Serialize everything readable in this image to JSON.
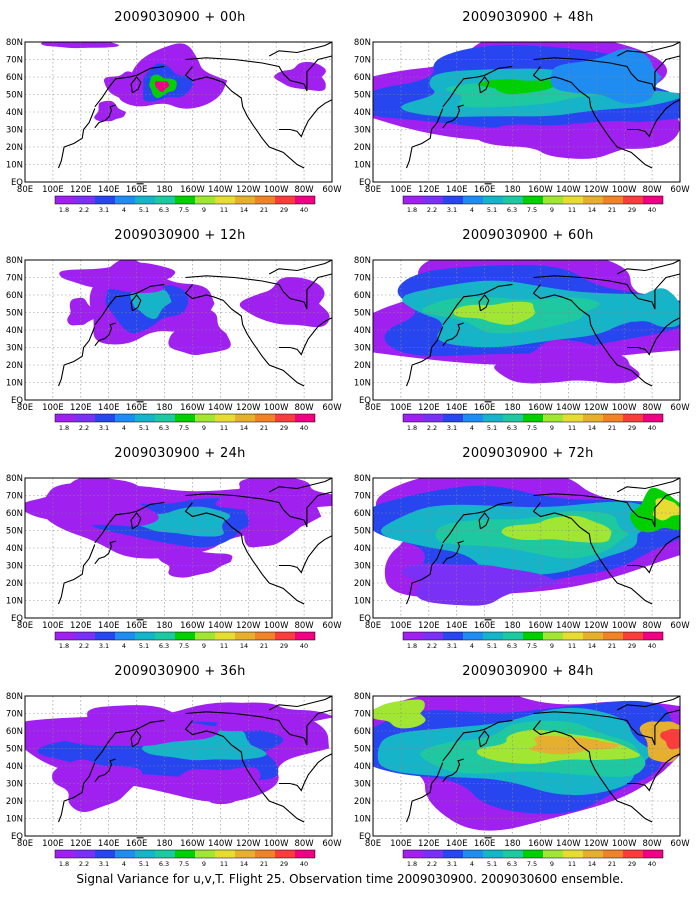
{
  "caption": "Signal Variance for u,v,T. Flight 25. Observation time 2009030900. 2009030600 ensemble.",
  "lat_labels": [
    "80N",
    "70N",
    "60N",
    "50N",
    "40N",
    "30N",
    "20N",
    "10N",
    "EQ"
  ],
  "lon_labels": [
    "80E",
    "100E",
    "120E",
    "140E",
    "160E",
    "180",
    "160W",
    "140W",
    "120W",
    "100W",
    "80W",
    "60W"
  ],
  "colorbar": {
    "labels": [
      "1.8",
      "2.2",
      "3.1",
      "4",
      "5.1",
      "6.3",
      "7.5",
      "9",
      "11",
      "14",
      "21",
      "29",
      "40"
    ],
    "colors": [
      "#a020f0",
      "#7a30f5",
      "#2846f0",
      "#1e8cf0",
      "#16b4c8",
      "#1ec8a0",
      "#00d000",
      "#a0e632",
      "#e6dc32",
      "#e6af2d",
      "#f08228",
      "#fa3c3c",
      "#f00082"
    ]
  },
  "panels": [
    {
      "title": "2009030900 + 00h",
      "level": 0
    },
    {
      "title": "2009030900 + 12h",
      "level": 1
    },
    {
      "title": "2009030900 + 24h",
      "level": 2
    },
    {
      "title": "2009030900 + 36h",
      "level": 3
    },
    {
      "title": "2009030900 + 48h",
      "level": 4
    },
    {
      "title": "2009030900 + 60h",
      "level": 5
    },
    {
      "title": "2009030900 + 72h",
      "level": 6
    },
    {
      "title": "2009030900 + 84h",
      "level": 7
    }
  ]
}
